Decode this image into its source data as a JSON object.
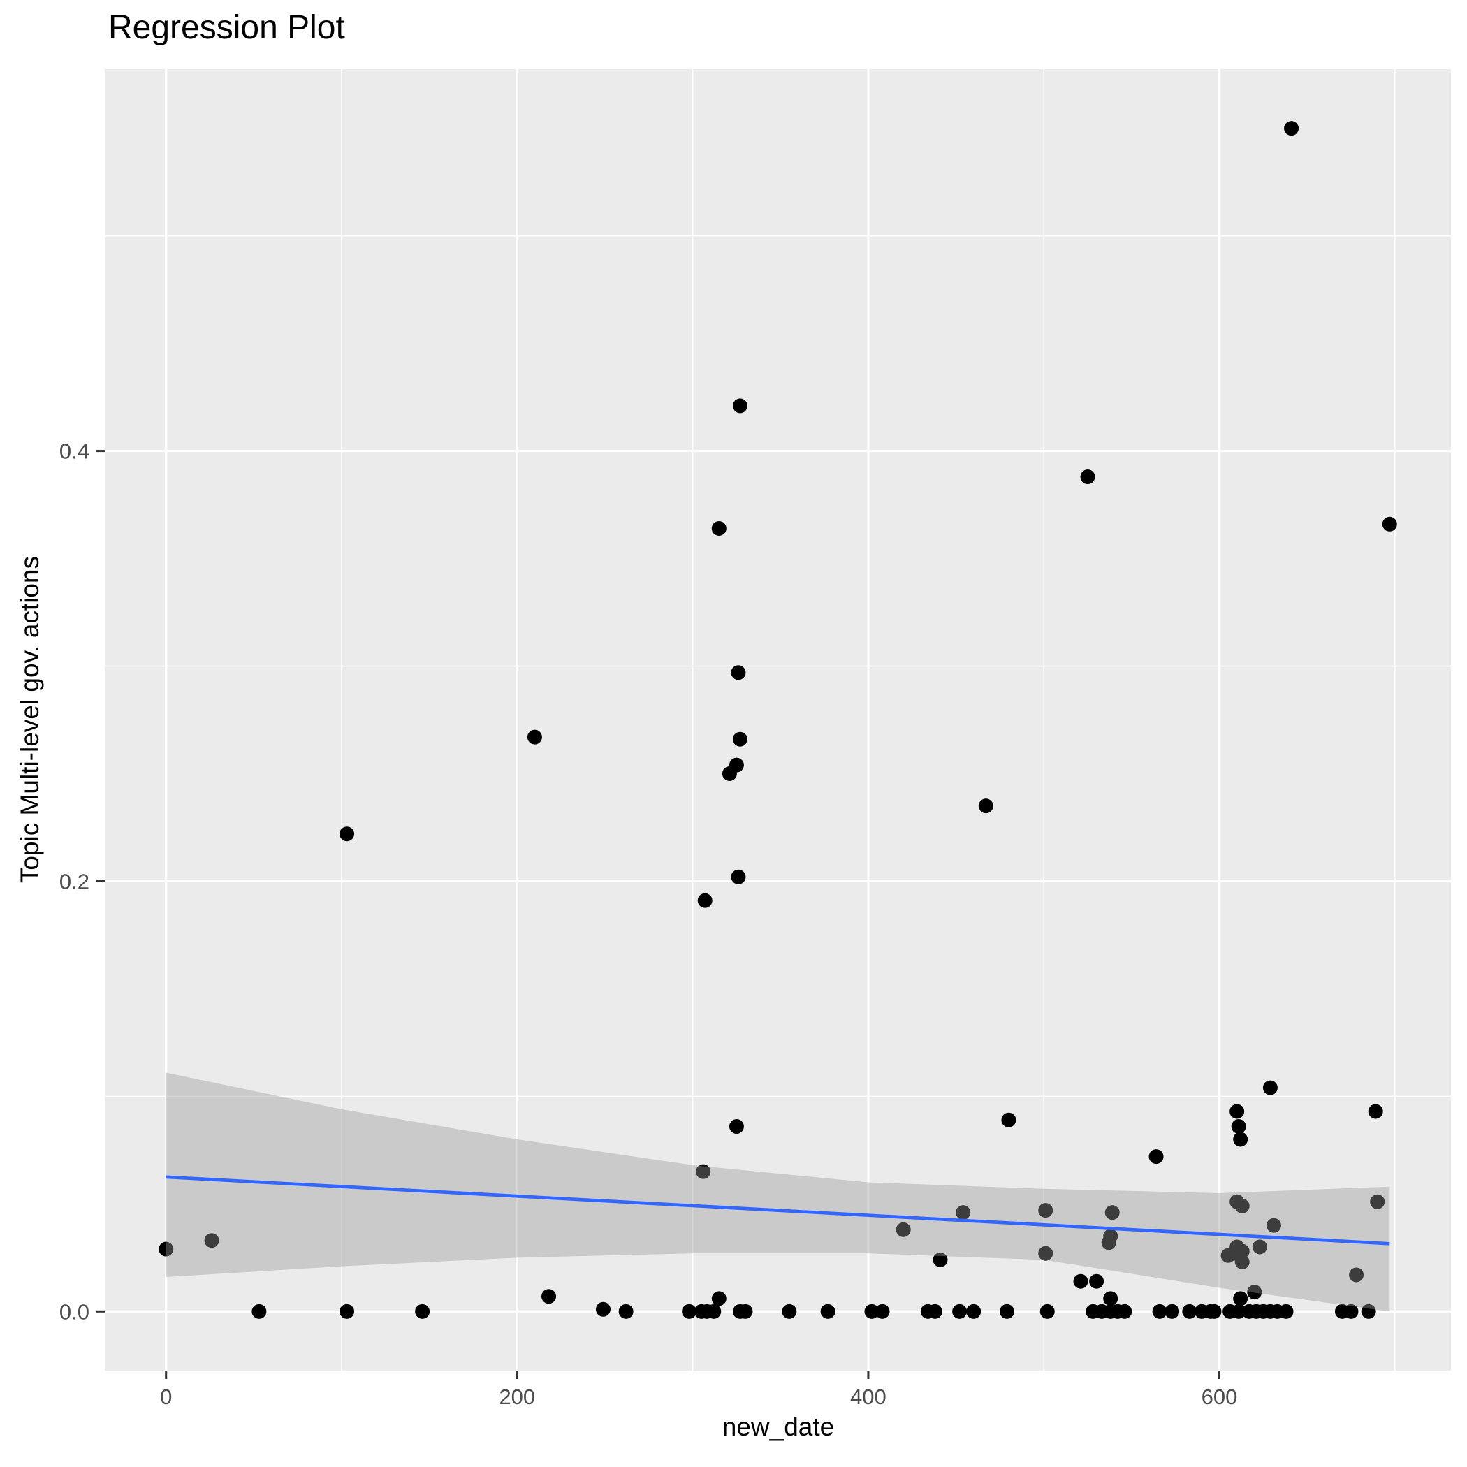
{
  "title": "Regression Plot",
  "chart_data": {
    "type": "scatter",
    "title": "Regression Plot",
    "xlabel": "new_date",
    "ylabel": "Topic Multi-level gov. actions",
    "x_ticks": [
      0,
      200,
      400,
      600
    ],
    "x_tick_labels": [
      "0",
      "200",
      "400",
      "600"
    ],
    "x_minor_ticks": [
      100,
      300,
      500,
      700
    ],
    "y_ticks": [
      0.0,
      0.2,
      0.4
    ],
    "y_tick_labels": [
      "0.0",
      "0.2",
      "0.4"
    ],
    "y_minor_ticks": [
      0.1,
      0.3,
      0.5
    ],
    "xlim": [
      -34.9,
      731.9
    ],
    "ylim": [
      -0.0275,
      0.5775
    ],
    "grid": true,
    "legend": false,
    "colors": {
      "panel": "#EBEBEB",
      "grid": "#FFFFFF",
      "point": "#000000",
      "regression_line": "#3366FF",
      "band_fill": "rgba(153,153,153,0.4)",
      "tick_text": "#4D4D4D",
      "tick_mark": "#333333",
      "title_text": "#000000"
    },
    "points": [
      [
        641,
        0.55
      ],
      [
        327,
        0.421
      ],
      [
        525,
        0.388
      ],
      [
        697,
        0.366
      ],
      [
        315,
        0.364
      ],
      [
        326,
        0.297
      ],
      [
        210,
        0.267
      ],
      [
        327,
        0.266
      ],
      [
        325,
        0.254
      ],
      [
        321,
        0.25
      ],
      [
        467,
        0.235
      ],
      [
        103,
        0.222
      ],
      [
        326,
        0.202
      ],
      [
        307,
        0.191
      ],
      [
        629,
        0.104
      ],
      [
        610,
        0.093
      ],
      [
        689,
        0.093
      ],
      [
        480,
        0.089
      ],
      [
        325,
        0.086
      ],
      [
        611,
        0.086
      ],
      [
        612,
        0.08
      ],
      [
        564,
        0.072
      ],
      [
        306,
        0.065
      ],
      [
        690,
        0.051
      ],
      [
        610,
        0.051
      ],
      [
        613,
        0.049
      ],
      [
        501,
        0.047
      ],
      [
        454,
        0.046
      ],
      [
        539,
        0.046
      ],
      [
        631,
        0.04
      ],
      [
        420,
        0.038
      ],
      [
        538,
        0.035
      ],
      [
        26,
        0.033
      ],
      [
        537,
        0.032
      ],
      [
        623,
        0.03
      ],
      [
        610,
        0.03
      ],
      [
        0,
        0.029
      ],
      [
        613,
        0.028
      ],
      [
        608,
        0.027
      ],
      [
        501,
        0.027
      ],
      [
        605,
        0.026
      ],
      [
        441,
        0.024
      ],
      [
        613,
        0.023
      ],
      [
        678,
        0.017
      ],
      [
        521,
        0.014
      ],
      [
        530,
        0.014
      ],
      [
        620,
        0.009
      ],
      [
        218,
        0.007
      ],
      [
        315,
        0.006
      ],
      [
        612,
        0.006
      ],
      [
        538,
        0.006
      ],
      [
        249,
        0.001
      ],
      [
        53,
        0
      ],
      [
        103,
        0
      ],
      [
        146,
        0
      ],
      [
        262,
        0
      ],
      [
        298,
        0
      ],
      [
        305,
        0
      ],
      [
        308,
        0
      ],
      [
        312,
        0
      ],
      [
        327,
        0
      ],
      [
        330,
        0
      ],
      [
        355,
        0
      ],
      [
        377,
        0
      ],
      [
        402,
        0
      ],
      [
        408,
        0
      ],
      [
        434,
        0
      ],
      [
        438,
        0
      ],
      [
        452,
        0
      ],
      [
        460,
        0
      ],
      [
        479,
        0
      ],
      [
        502,
        0
      ],
      [
        528,
        0
      ],
      [
        533,
        0
      ],
      [
        538,
        0
      ],
      [
        542,
        0
      ],
      [
        546,
        0
      ],
      [
        566,
        0
      ],
      [
        573,
        0
      ],
      [
        583,
        0
      ],
      [
        590,
        0
      ],
      [
        595,
        0
      ],
      [
        597,
        0
      ],
      [
        606,
        0
      ],
      [
        611,
        0
      ],
      [
        617,
        0
      ],
      [
        621,
        0
      ],
      [
        625,
        0
      ],
      [
        629,
        0
      ],
      [
        633,
        0
      ],
      [
        638,
        0
      ],
      [
        670,
        0
      ],
      [
        675,
        0
      ],
      [
        685,
        0
      ]
    ],
    "regression_line": {
      "x1": 0,
      "y1": 0.0625,
      "x2": 697,
      "y2": 0.0315
    },
    "confidence_band": {
      "top": [
        [
          0,
          0.111
        ],
        [
          100,
          0.094
        ],
        [
          200,
          0.08
        ],
        [
          300,
          0.068
        ],
        [
          400,
          0.06
        ],
        [
          500,
          0.057
        ],
        [
          600,
          0.055
        ],
        [
          697,
          0.058
        ]
      ],
      "bottom": [
        [
          0,
          0.016
        ],
        [
          100,
          0.021
        ],
        [
          200,
          0.025
        ],
        [
          300,
          0.027
        ],
        [
          400,
          0.027
        ],
        [
          500,
          0.024
        ],
        [
          600,
          0.011
        ],
        [
          697,
          0.0
        ]
      ]
    }
  }
}
